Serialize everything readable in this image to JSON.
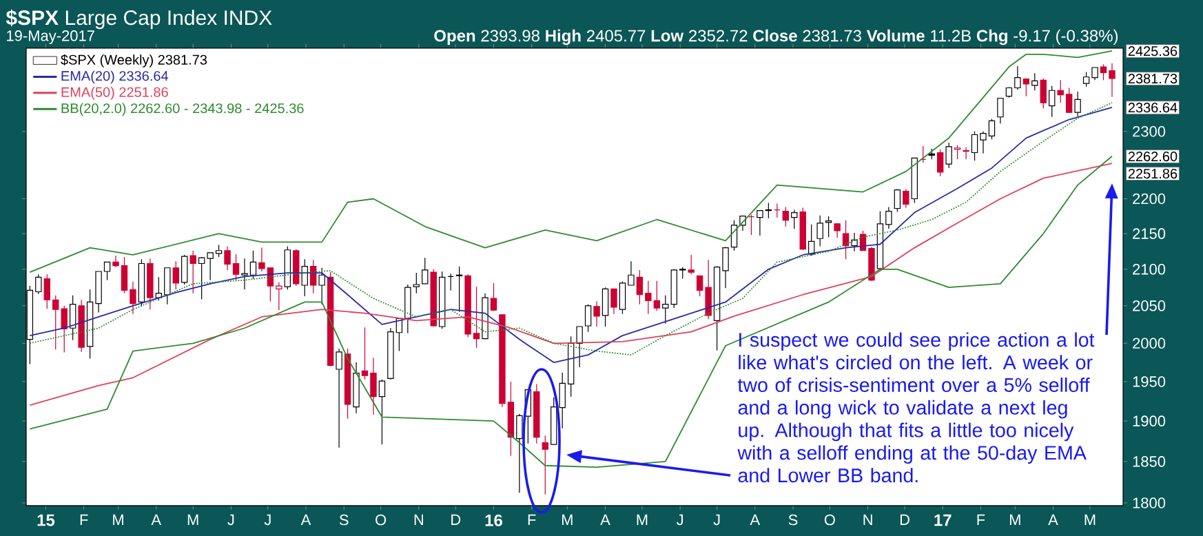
{
  "chart_data": {
    "type": "candlestick",
    "title": "**$SPX** Large Cap Index INDX",
    "subtitle": "19-May-2017",
    "log": true,
    "legend": "top left",
    "xlim": [
      "2014-12-16",
      "2017-05-28"
    ],
    "ylim": [
      1797,
      2430
    ],
    "xticks": [
      {
        "value": "2015-01-01",
        "label": "15"
      },
      {
        "value": "2015-02-01",
        "label": "F"
      },
      {
        "value": "2015-03-01",
        "label": "M"
      },
      {
        "value": "2015-04-01",
        "label": "A"
      },
      {
        "value": "2015-05-01",
        "label": "M"
      },
      {
        "value": "2015-06-01",
        "label": "J"
      },
      {
        "value": "2015-07-01",
        "label": "J"
      },
      {
        "value": "2015-08-01",
        "label": "A"
      },
      {
        "value": "2015-09-01",
        "label": "S"
      },
      {
        "value": "2015-10-01",
        "label": "O"
      },
      {
        "value": "2015-11-01",
        "label": "N"
      },
      {
        "value": "2015-12-01",
        "label": "D"
      },
      {
        "value": "2016-01-01",
        "label": "16"
      },
      {
        "value": "2016-02-01",
        "label": "F"
      },
      {
        "value": "2016-03-01",
        "label": "M"
      },
      {
        "value": "2016-04-01",
        "label": "A"
      },
      {
        "value": "2016-05-01",
        "label": "M"
      },
      {
        "value": "2016-06-01",
        "label": "J"
      },
      {
        "value": "2016-07-01",
        "label": "J"
      },
      {
        "value": "2016-08-01",
        "label": "A"
      },
      {
        "value": "2016-09-01",
        "label": "S"
      },
      {
        "value": "2016-10-01",
        "label": "O"
      },
      {
        "value": "2016-11-01",
        "label": "N"
      },
      {
        "value": "2016-12-01",
        "label": "D"
      },
      {
        "value": "2017-01-01",
        "label": "17"
      },
      {
        "value": "2017-02-01",
        "label": "F"
      },
      {
        "value": "2017-03-01",
        "label": "M"
      },
      {
        "value": "2017-04-01",
        "label": "A"
      },
      {
        "value": "2017-05-01",
        "label": "M"
      }
    ],
    "yticks": [
      1800,
      1850,
      1900,
      1950,
      2000,
      2050,
      2100,
      2150,
      2200,
      2300
    ],
    "series": [
      {
        "name": "$SPX (Weekly) 2381.73",
        "x": [
          "2014-12-19",
          "2014-12-26",
          "2015-01-02",
          "2015-01-09",
          "2015-01-16",
          "2015-01-23",
          "2015-01-30",
          "2015-02-06",
          "2015-02-13",
          "2015-02-20",
          "2015-02-27",
          "2015-03-06",
          "2015-03-13",
          "2015-03-20",
          "2015-03-27",
          "2015-04-03",
          "2015-04-10",
          "2015-04-17",
          "2015-04-24",
          "2015-05-01",
          "2015-05-08",
          "2015-05-15",
          "2015-05-22",
          "2015-05-29",
          "2015-06-05",
          "2015-06-12",
          "2015-06-19",
          "2015-06-26",
          "2015-07-03",
          "2015-07-10",
          "2015-07-17",
          "2015-07-24",
          "2015-07-31",
          "2015-08-07",
          "2015-08-14",
          "2015-08-21",
          "2015-08-28",
          "2015-09-04",
          "2015-09-11",
          "2015-09-18",
          "2015-09-25",
          "2015-10-02",
          "2015-10-09",
          "2015-10-16",
          "2015-10-23",
          "2015-10-30",
          "2015-11-06",
          "2015-11-13",
          "2015-11-20",
          "2015-11-27",
          "2015-12-04",
          "2015-12-11",
          "2015-12-18",
          "2015-12-25",
          "2016-01-01",
          "2016-01-08",
          "2016-01-15",
          "2016-01-22",
          "2016-01-29",
          "2016-02-05",
          "2016-02-12",
          "2016-02-19",
          "2016-02-26",
          "2016-03-04",
          "2016-03-11",
          "2016-03-18",
          "2016-03-25",
          "2016-04-01",
          "2016-04-08",
          "2016-04-15",
          "2016-04-22",
          "2016-04-29",
          "2016-05-06",
          "2016-05-13",
          "2016-05-20",
          "2016-05-27",
          "2016-06-03",
          "2016-06-10",
          "2016-06-17",
          "2016-06-24",
          "2016-07-01",
          "2016-07-08",
          "2016-07-15",
          "2016-07-22",
          "2016-07-29",
          "2016-08-05",
          "2016-08-12",
          "2016-08-19",
          "2016-08-26",
          "2016-09-02",
          "2016-09-09",
          "2016-09-16",
          "2016-09-23",
          "2016-09-30",
          "2016-10-07",
          "2016-10-14",
          "2016-10-21",
          "2016-10-28",
          "2016-11-04",
          "2016-11-11",
          "2016-11-18",
          "2016-11-25",
          "2016-12-02",
          "2016-12-09",
          "2016-12-16",
          "2016-12-23",
          "2016-12-30",
          "2017-01-06",
          "2017-01-13",
          "2017-01-20",
          "2017-01-27",
          "2017-02-03",
          "2017-02-10",
          "2017-02-17",
          "2017-02-24",
          "2017-03-03",
          "2017-03-10",
          "2017-03-17",
          "2017-03-24",
          "2017-03-31",
          "2017-04-07",
          "2017-04-14",
          "2017-04-21",
          "2017-04-28",
          "2017-05-05",
          "2017-05-12",
          "2017-05-19"
        ],
        "ohlc": [
          [
            2005,
            2077,
            1973,
            2071
          ],
          [
            2069,
            2093,
            2066,
            2089
          ],
          [
            2087,
            2093,
            2046,
            2058
          ],
          [
            2058,
            2064,
            1992,
            2045
          ],
          [
            2046,
            2050,
            1988,
            2019
          ],
          [
            2020,
            2064,
            2004,
            2052
          ],
          [
            2050,
            2058,
            1989,
            1995
          ],
          [
            1996,
            2072,
            1980,
            2055
          ],
          [
            2053,
            2097,
            2041,
            2097
          ],
          [
            2097,
            2110,
            2085,
            2110
          ],
          [
            2110,
            2119,
            2103,
            2105
          ],
          [
            2105,
            2117,
            2067,
            2071
          ],
          [
            2072,
            2083,
            2039,
            2053
          ],
          [
            2055,
            2114,
            2049,
            2108
          ],
          [
            2108,
            2115,
            2045,
            2061
          ],
          [
            2061,
            2089,
            2057,
            2067
          ],
          [
            2065,
            2102,
            2052,
            2102
          ],
          [
            2102,
            2111,
            2072,
            2081
          ],
          [
            2082,
            2120,
            2079,
            2118
          ],
          [
            2119,
            2126,
            2067,
            2108
          ],
          [
            2108,
            2117,
            2059,
            2116
          ],
          [
            2115,
            2123,
            2085,
            2123
          ],
          [
            2122,
            2134,
            2117,
            2126
          ],
          [
            2126,
            2132,
            2099,
            2107
          ],
          [
            2108,
            2121,
            2085,
            2093
          ],
          [
            2092,
            2115,
            2072,
            2094
          ],
          [
            2092,
            2126,
            2087,
            2110
          ],
          [
            2109,
            2130,
            2097,
            2101
          ],
          [
            2102,
            2102,
            2056,
            2077
          ],
          [
            2073,
            2082,
            2044,
            2077
          ],
          [
            2076,
            2132,
            2072,
            2127
          ],
          [
            2126,
            2128,
            2077,
            2080
          ],
          [
            2078,
            2114,
            2063,
            2104
          ],
          [
            2104,
            2113,
            2067,
            2078
          ],
          [
            2078,
            2102,
            2052,
            2092
          ],
          [
            2089,
            2096,
            1970,
            1971
          ],
          [
            1966,
            1993,
            1867,
            1989
          ],
          [
            1986,
            1993,
            1903,
            1921
          ],
          [
            1918,
            1975,
            1910,
            1961
          ],
          [
            1964,
            2021,
            1953,
            1958
          ],
          [
            1961,
            1981,
            1908,
            1931
          ],
          [
            1931,
            1953,
            1871,
            1951
          ],
          [
            1954,
            2020,
            1953,
            2015
          ],
          [
            2014,
            2034,
            1990,
            2033
          ],
          [
            2033,
            2079,
            2013,
            2075
          ],
          [
            2076,
            2095,
            2067,
            2079
          ],
          [
            2080,
            2116,
            2080,
            2099
          ],
          [
            2096,
            2100,
            2022,
            2023
          ],
          [
            2022,
            2097,
            2019,
            2089
          ],
          [
            2090,
            2094,
            2071,
            2090
          ],
          [
            2091,
            2104,
            2042,
            2092
          ],
          [
            2091,
            2093,
            2008,
            2012
          ],
          [
            2013,
            2076,
            1994,
            2006
          ],
          [
            2006,
            2067,
            2005,
            2061
          ],
          [
            2060,
            2081,
            2043,
            2044
          ],
          [
            2038,
            2038,
            1918,
            1922
          ],
          [
            1924,
            1950,
            1857,
            1880
          ],
          [
            1878,
            1909,
            1812,
            1907
          ],
          [
            1906,
            1940,
            1872,
            1940
          ],
          [
            1937,
            1947,
            1872,
            1880
          ],
          [
            1873,
            1882,
            1810,
            1865
          ],
          [
            1871,
            1930,
            1871,
            1918
          ],
          [
            1917,
            1962,
            1891,
            1948
          ],
          [
            1947,
            2009,
            1931,
            2000
          ],
          [
            2000,
            2022,
            1969,
            2022
          ],
          [
            2023,
            2052,
            2015,
            2050
          ],
          [
            2049,
            2056,
            2022,
            2036
          ],
          [
            2037,
            2075,
            2022,
            2073
          ],
          [
            2073,
            2073,
            2039,
            2048
          ],
          [
            2045,
            2083,
            2039,
            2081
          ],
          [
            2078,
            2111,
            2078,
            2092
          ],
          [
            2089,
            2099,
            2052,
            2065
          ],
          [
            2067,
            2084,
            2039,
            2057
          ],
          [
            2057,
            2084,
            2043,
            2047
          ],
          [
            2047,
            2064,
            2026,
            2052
          ],
          [
            2052,
            2100,
            2047,
            2099
          ],
          [
            2100,
            2103,
            2087,
            2099
          ],
          [
            2099,
            2120,
            2093,
            2096
          ],
          [
            2091,
            2091,
            2063,
            2071
          ],
          [
            2075,
            2113,
            2032,
            2037
          ],
          [
            2030,
            2104,
            1991,
            2103
          ],
          [
            2098,
            2131,
            2074,
            2130
          ],
          [
            2131,
            2169,
            2126,
            2162
          ],
          [
            2162,
            2176,
            2154,
            2175
          ],
          [
            2174,
            2177,
            2148,
            2174
          ],
          [
            2173,
            2183,
            2147,
            2183
          ],
          [
            2183,
            2194,
            2172,
            2184
          ],
          [
            2184,
            2193,
            2173,
            2184
          ],
          [
            2182,
            2188,
            2160,
            2169
          ],
          [
            2173,
            2184,
            2157,
            2180
          ],
          [
            2181,
            2187,
            2127,
            2128
          ],
          [
            2121,
            2163,
            2119,
            2139
          ],
          [
            2143,
            2176,
            2132,
            2165
          ],
          [
            2166,
            2175,
            2145,
            2168
          ],
          [
            2164,
            2165,
            2144,
            2154
          ],
          [
            2150,
            2169,
            2114,
            2133
          ],
          [
            2133,
            2151,
            2125,
            2141
          ],
          [
            2149,
            2154,
            2126,
            2126
          ],
          [
            2129,
            2131,
            2084,
            2085
          ],
          [
            2101,
            2182,
            2098,
            2164
          ],
          [
            2163,
            2188,
            2157,
            2182
          ],
          [
            2186,
            2214,
            2181,
            2213
          ],
          [
            2211,
            2214,
            2187,
            2192
          ],
          [
            2200,
            2260,
            2194,
            2260
          ],
          [
            2258,
            2278,
            2253,
            2258
          ],
          [
            2266,
            2274,
            2258,
            2264
          ],
          [
            2268,
            2273,
            2233,
            2239
          ],
          [
            2251,
            2283,
            2245,
            2277
          ],
          [
            2273,
            2279,
            2258,
            2275
          ],
          [
            2270,
            2276,
            2258,
            2271
          ],
          [
            2268,
            2300,
            2256,
            2295
          ],
          [
            2287,
            2300,
            2267,
            2297
          ],
          [
            2293,
            2319,
            2288,
            2316
          ],
          [
            2322,
            2351,
            2312,
            2351
          ],
          [
            2354,
            2368,
            2352,
            2367
          ],
          [
            2367,
            2401,
            2364,
            2383
          ],
          [
            2381,
            2382,
            2354,
            2373
          ],
          [
            2371,
            2390,
            2363,
            2378
          ],
          [
            2379,
            2382,
            2335,
            2344
          ],
          [
            2339,
            2370,
            2322,
            2363
          ],
          [
            2363,
            2379,
            2344,
            2356
          ],
          [
            2357,
            2367,
            2328,
            2329
          ],
          [
            2329,
            2361,
            2323,
            2349
          ],
          [
            2374,
            2392,
            2369,
            2384
          ],
          [
            2383,
            2399,
            2379,
            2399
          ],
          [
            2400,
            2404,
            2379,
            2391
          ],
          [
            2393.98,
            2405.77,
            2352.72,
            2381.73
          ]
        ],
        "colors": [
          "#000000",
          "#000000",
          "#cc0033",
          "#cc0033",
          "#cc0033",
          "#000000",
          "#cc0033",
          "#000000",
          "#000000",
          "#000000",
          "#cc0033",
          "#cc0033",
          "#cc0033",
          "#000000",
          "#cc0033",
          "#000000",
          "#000000",
          "#cc0033",
          "#000000",
          "#cc0033",
          "#000000",
          "#000000",
          "#000000",
          "#cc0033",
          "#cc0033",
          "#000000",
          "#000000",
          "#cc0033",
          "#cc0033",
          "#cc0033",
          "#000000",
          "#cc0033",
          "#000000",
          "#cc0033",
          "#000000",
          "#cc0033",
          "#000000",
          "#cc0033",
          "#000000",
          "#cc0033",
          "#cc0033",
          "#000000",
          "#000000",
          "#000000",
          "#000000",
          "#000000",
          "#000000",
          "#cc0033",
          "#000000",
          "#000000",
          "#000000",
          "#cc0033",
          "#cc0033",
          "#000000",
          "#cc0033",
          "#cc0033",
          "#cc0033",
          "#000000",
          "#000000",
          "#cc0033",
          "#cc0033",
          "#000000",
          "#000000",
          "#000000",
          "#000000",
          "#000000",
          "#cc0033",
          "#000000",
          "#cc0033",
          "#000000",
          "#000000",
          "#cc0033",
          "#cc0033",
          "#cc0033",
          "#000000",
          "#000000",
          "#000000",
          "#cc0033",
          "#cc0033",
          "#cc0033",
          "#000000",
          "#000000",
          "#000000",
          "#000000",
          "#cc0033",
          "#000000",
          "#000000",
          "#cc0033",
          "#cc0033",
          "#000000",
          "#cc0033",
          "#000000",
          "#000000",
          "#000000",
          "#cc0033",
          "#cc0033",
          "#000000",
          "#cc0033",
          "#cc0033",
          "#000000",
          "#000000",
          "#000000",
          "#cc0033",
          "#000000",
          "#cc0033",
          "#000000",
          "#cc0033",
          "#000000",
          "#cc0033",
          "#cc0033",
          "#000000",
          "#000000",
          "#000000",
          "#000000",
          "#000000",
          "#000000",
          "#cc0033",
          "#000000",
          "#cc0033",
          "#000000",
          "#cc0033",
          "#cc0033",
          "#000000",
          "#000000",
          "#000000",
          "#cc0033",
          "#cc0033"
        ]
      },
      {
        "type": "line",
        "name": "EMA(20) 2336.64",
        "color": "#2a2aa6",
        "x": [
          "2014-12-19",
          "2015-01-16",
          "2015-02-13",
          "2015-03-13",
          "2015-04-17",
          "2015-05-15",
          "2015-06-12",
          "2015-07-17",
          "2015-08-14",
          "2015-09-04",
          "2015-10-02",
          "2015-10-30",
          "2015-11-27",
          "2015-12-25",
          "2016-01-22",
          "2016-02-19",
          "2016-03-18",
          "2016-04-15",
          "2016-05-13",
          "2016-06-10",
          "2016-07-08",
          "2016-08-12",
          "2016-09-09",
          "2016-10-14",
          "2016-11-11",
          "2016-12-09",
          "2017-01-13",
          "2017-02-10",
          "2017-03-10",
          "2017-04-14",
          "2017-05-19"
        ],
        "values": [
          2010,
          2020,
          2035,
          2050,
          2068,
          2080,
          2090,
          2095,
          2095,
          2065,
          2025,
          2035,
          2045,
          2040,
          2005,
          1975,
          1985,
          2010,
          2025,
          2040,
          2055,
          2100,
          2120,
          2130,
          2135,
          2180,
          2215,
          2245,
          2290,
          2318,
          2336.64
        ]
      },
      {
        "type": "line",
        "name": "EMA(50) 2251.86",
        "color": "#e0405a",
        "x": [
          "2014-12-19",
          "2015-02-13",
          "2015-03-13",
          "2015-05-15",
          "2015-06-26",
          "2015-08-14",
          "2015-09-18",
          "2015-10-30",
          "2015-12-11",
          "2016-01-15",
          "2016-02-19",
          "2016-04-15",
          "2016-06-10",
          "2016-07-15",
          "2016-09-09",
          "2016-11-04",
          "2016-12-09",
          "2017-01-13",
          "2017-02-17",
          "2017-03-24",
          "2017-05-19"
        ],
        "values": [
          1920,
          1945,
          1955,
          2005,
          2035,
          2045,
          2040,
          2030,
          2035,
          2020,
          2000,
          2002,
          2015,
          2036,
          2065,
          2090,
          2130,
          2165,
          2200,
          2230,
          2251.86
        ]
      },
      {
        "type": "line",
        "name": "BB(20,2.0) 2262.60 - 2343.98 - 2425.36",
        "color": "#2e8b2e",
        "line_style": "dotted",
        "x": [
          "2014-12-19",
          "2015-02-13",
          "2015-03-13",
          "2015-05-01",
          "2015-06-12",
          "2015-07-31",
          "2015-08-21",
          "2015-09-25",
          "2015-10-30",
          "2015-11-27",
          "2015-12-25",
          "2016-01-22",
          "2016-02-19",
          "2016-03-25",
          "2016-04-22",
          "2016-05-20",
          "2016-06-24",
          "2016-07-22",
          "2016-08-19",
          "2016-09-30",
          "2016-10-28",
          "2016-11-25",
          "2016-12-23",
          "2017-01-20",
          "2017-02-17",
          "2017-03-24",
          "2017-04-21",
          "2017-05-19"
        ],
        "values": [
          2000,
          2020,
          2045,
          2080,
          2085,
          2095,
          2098,
          2060,
          2035,
          2045,
          2015,
          2020,
          2000,
          1990,
          1985,
          2010,
          2040,
          2060,
          2110,
          2125,
          2145,
          2155,
          2170,
          2195,
          2240,
          2285,
          2320,
          2343.98
        ]
      },
      {
        "type": "line",
        "color": "#2e8b2e",
        "x": [
          "2014-12-19",
          "2015-02-06",
          "2015-03-13",
          "2015-05-22",
          "2015-06-26",
          "2015-08-14",
          "2015-09-04",
          "2015-09-25",
          "2015-11-06",
          "2015-12-25",
          "2016-02-12",
          "2016-03-25",
          "2016-05-13",
          "2016-07-08",
          "2016-08-19",
          "2016-10-28",
          "2016-12-02",
          "2017-01-06",
          "2017-02-24",
          "2017-03-10",
          "2017-03-24",
          "2017-04-21",
          "2017-05-19"
        ],
        "values": [
          2096,
          2130,
          2120,
          2150,
          2138,
          2138,
          2195,
          2200,
          2160,
          2130,
          2155,
          2140,
          2170,
          2140,
          2220,
          2210,
          2240,
          2290,
          2400,
          2420,
          2420,
          2415,
          2425.36
        ]
      },
      {
        "type": "line",
        "color": "#2e8b2e",
        "x": [
          "2014-12-19",
          "2015-02-20",
          "2015-03-13",
          "2015-05-01",
          "2015-06-12",
          "2015-07-31",
          "2015-08-14",
          "2015-09-04",
          "2015-10-02",
          "2016-01-01",
          "2016-01-22",
          "2016-02-12",
          "2016-03-25",
          "2016-05-20",
          "2016-07-08",
          "2016-09-30",
          "2016-11-11",
          "2016-11-25",
          "2017-01-06",
          "2017-02-17",
          "2017-03-24",
          "2017-04-21",
          "2017-05-19"
        ],
        "values": [
          1890,
          1915,
          1990,
          2000,
          2020,
          2055,
          2055,
          1980,
          1905,
          1900,
          1873,
          1845,
          1843,
          1850,
          1997,
          2055,
          2100,
          2100,
          2075,
          2080,
          2150,
          2220,
          2262.6
        ]
      }
    ],
    "annotations": [
      "**Open** 2393.98 **High** 2405.77 **Low** 2352.72 **Close** 2381.73 **Volume** 11.2B **Chg** -9.17 (-0.38%)",
      "I suspect we could see price action a lot like what's circled on the left. A week or two of crisis-sentiment over a 5% selloff and a long wick to validate a next leg up. Although that fits a little too nicely with a selloff ending at the 50-day EMA and Lower BB band.",
      {
        "text": "2425.36",
        "x": "2017-05-19",
        "y": 2425.36
      },
      {
        "text": "2381.73",
        "x": "2017-05-19",
        "y": 2381.73
      },
      {
        "text": "2336.64",
        "x": "2017-05-19",
        "y": 2336.64
      },
      {
        "text": "2262.60",
        "x": "2017-05-19",
        "y": 2262.6
      },
      {
        "text": "2251.86",
        "x": "2017-05-19",
        "y": 2251.86
      }
    ]
  }
}
